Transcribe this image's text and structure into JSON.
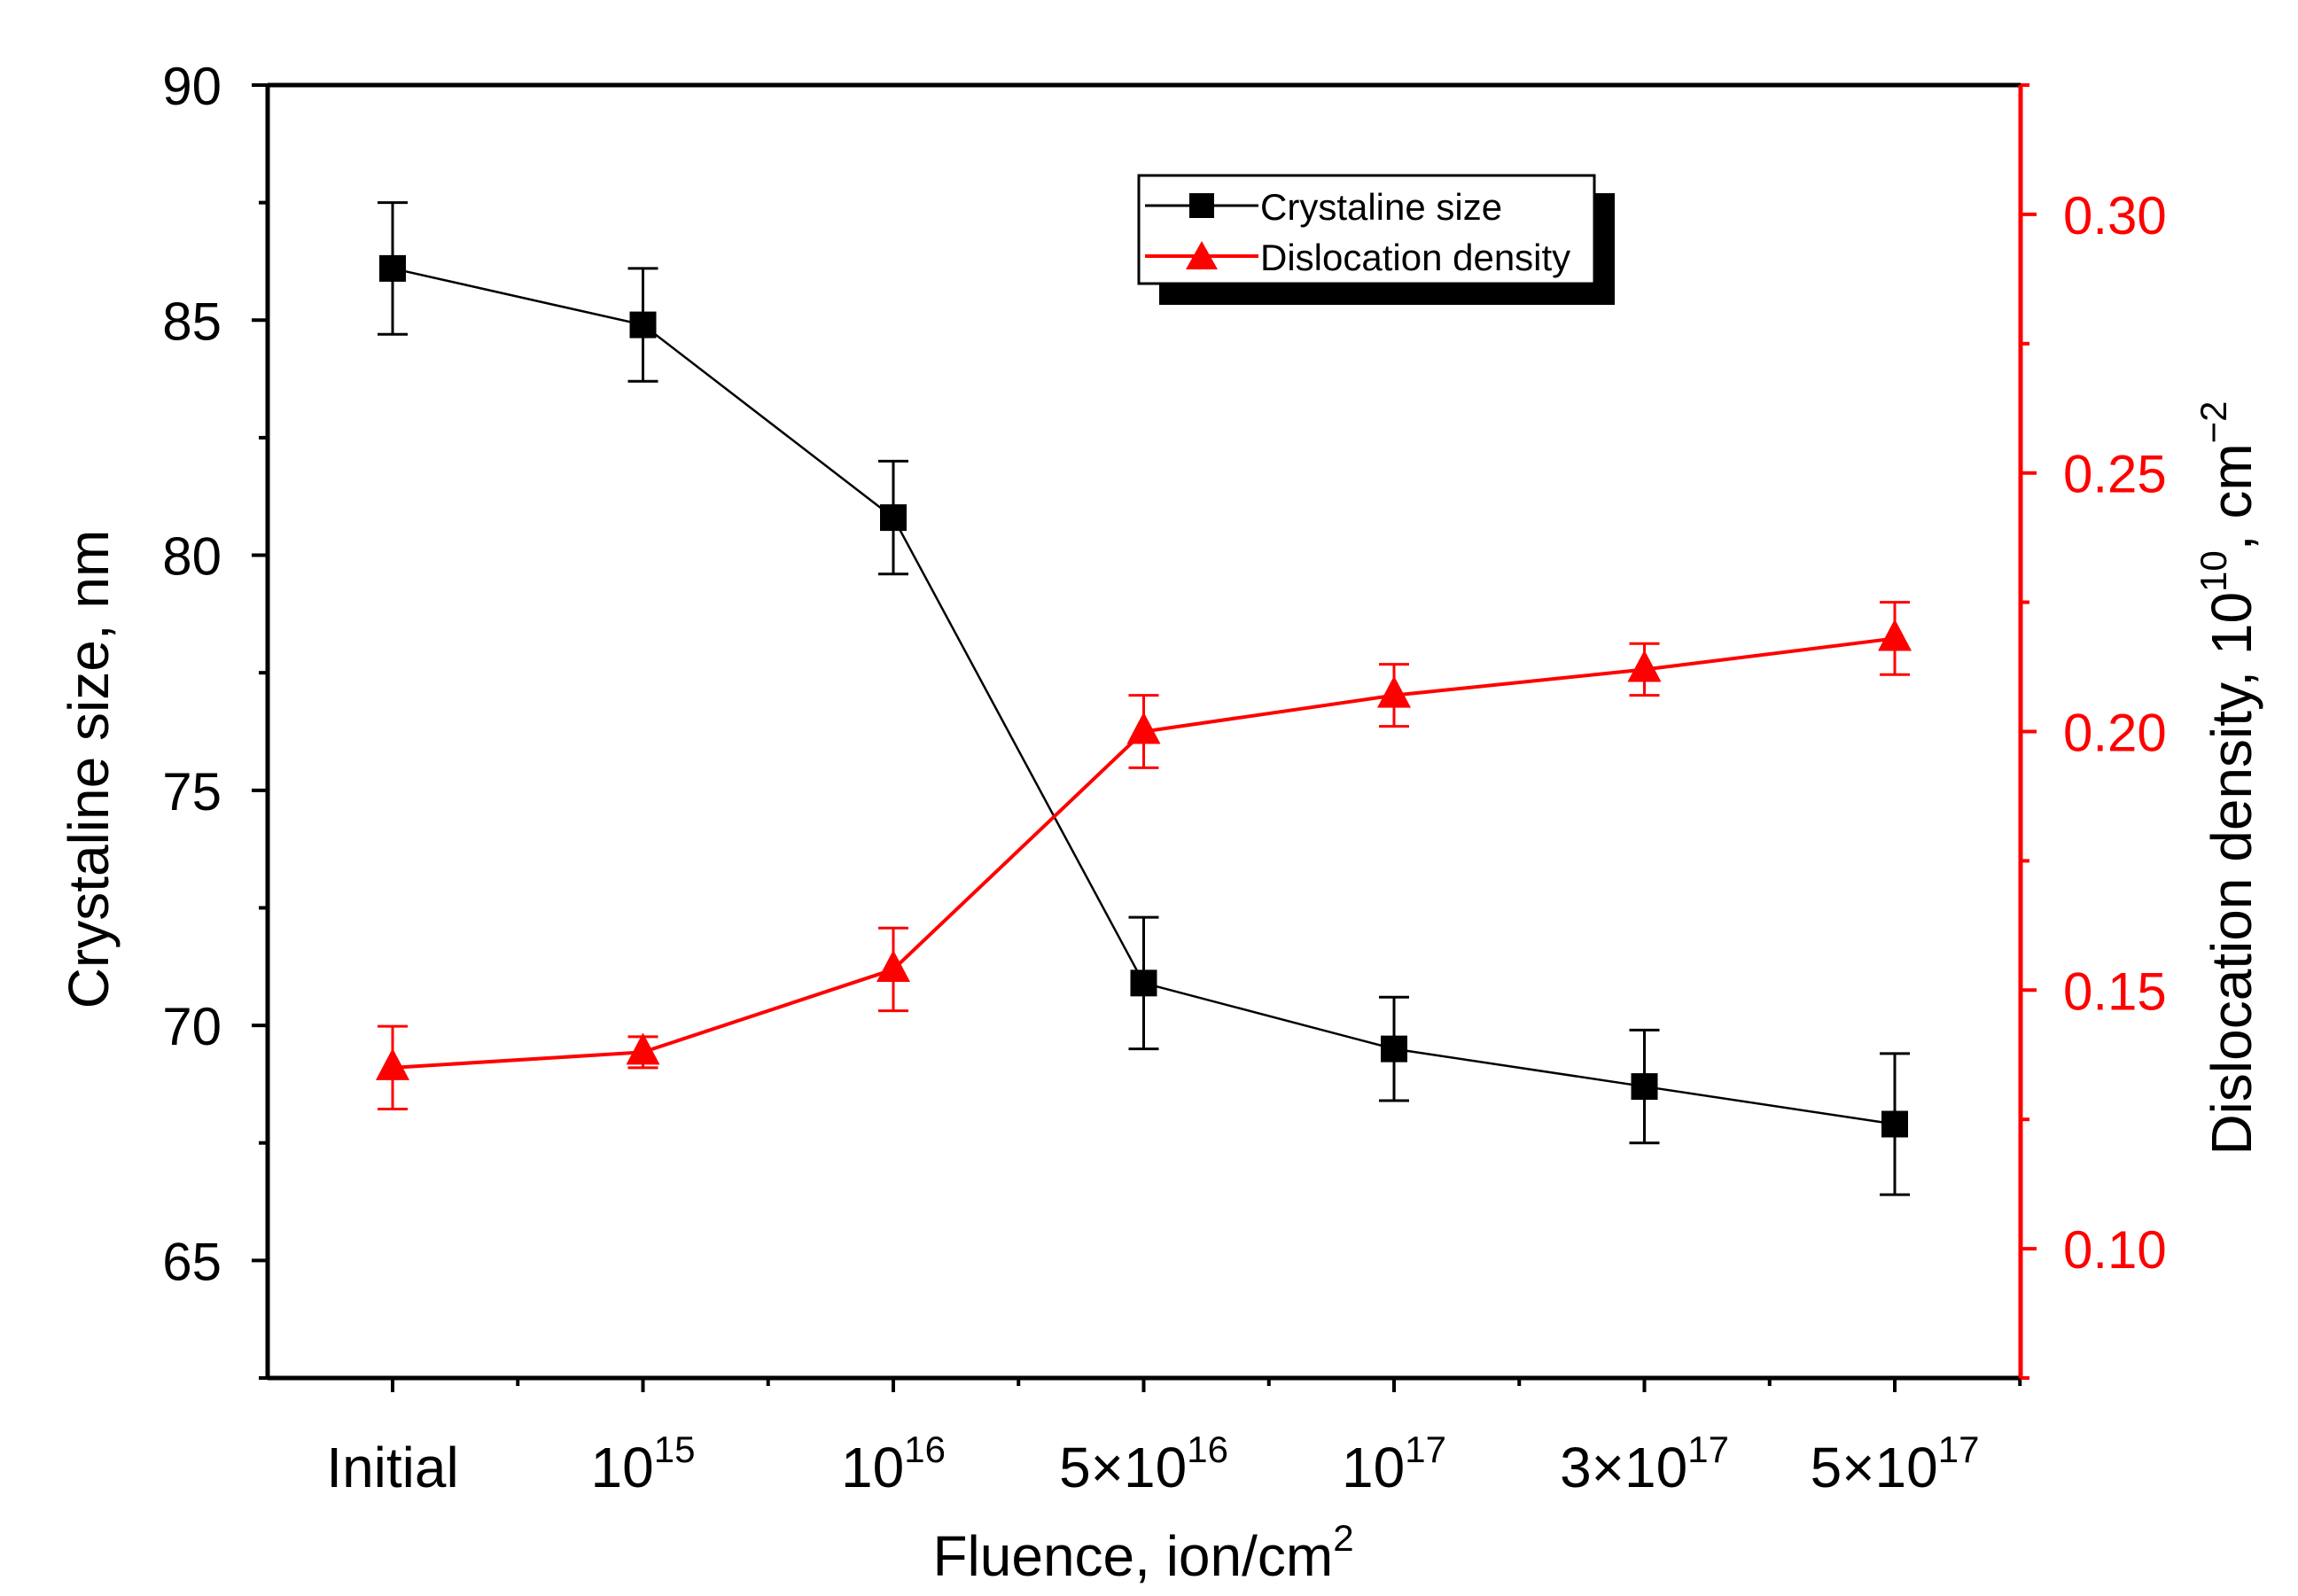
{
  "chart_data": {
    "type": "line",
    "categories": [
      "Initial",
      "10^15",
      "10^16",
      "5×10^16",
      "10^17",
      "3×10^17",
      "5×10^17"
    ],
    "tick_labels": [
      {
        "base": "Initial",
        "sup": ""
      },
      {
        "base": "10",
        "sup": "15"
      },
      {
        "base": "10",
        "sup": "16"
      },
      {
        "base": "5×10",
        "sup": "16"
      },
      {
        "base": "10",
        "sup": "17"
      },
      {
        "base": "3×10",
        "sup": "17"
      },
      {
        "base": "5×10",
        "sup": "17"
      }
    ],
    "xlabel": {
      "text": "Fluence, ion/cm",
      "sup": "2"
    },
    "ylabel_left": "Crystaline size, nm",
    "ylabel_right": {
      "text": "Dislocation density, 10",
      "sup1": "10",
      "mid": ", cm",
      "sup2": "−2"
    },
    "ylim_left": [
      62.5,
      90
    ],
    "yticks_left": [
      "65",
      "70",
      "75",
      "80",
      "85",
      "90"
    ],
    "ylim_right": [
      0.075,
      0.325
    ],
    "yticks_right": [
      "0.10",
      "0.15",
      "0.20",
      "0.25",
      "0.30"
    ],
    "series": [
      {
        "name": "Crystaline size",
        "axis": "left",
        "marker": "square",
        "color": "#000000",
        "values": [
          86.1,
          84.9,
          80.8,
          70.9,
          69.5,
          68.7,
          67.9
        ],
        "errors": [
          1.4,
          1.2,
          1.2,
          1.4,
          1.1,
          1.2,
          1.5
        ]
      },
      {
        "name": "Dislocation density",
        "axis": "right",
        "marker": "triangle",
        "color": "#ff0000",
        "values": [
          0.135,
          0.138,
          0.154,
          0.2,
          0.207,
          0.212,
          0.218
        ],
        "errors": [
          0.008,
          0.003,
          0.008,
          0.007,
          0.006,
          0.005,
          0.007
        ]
      }
    ],
    "legend": {
      "position": "top-right",
      "entries": [
        "Crystaline size",
        "Dislocation density"
      ]
    }
  }
}
